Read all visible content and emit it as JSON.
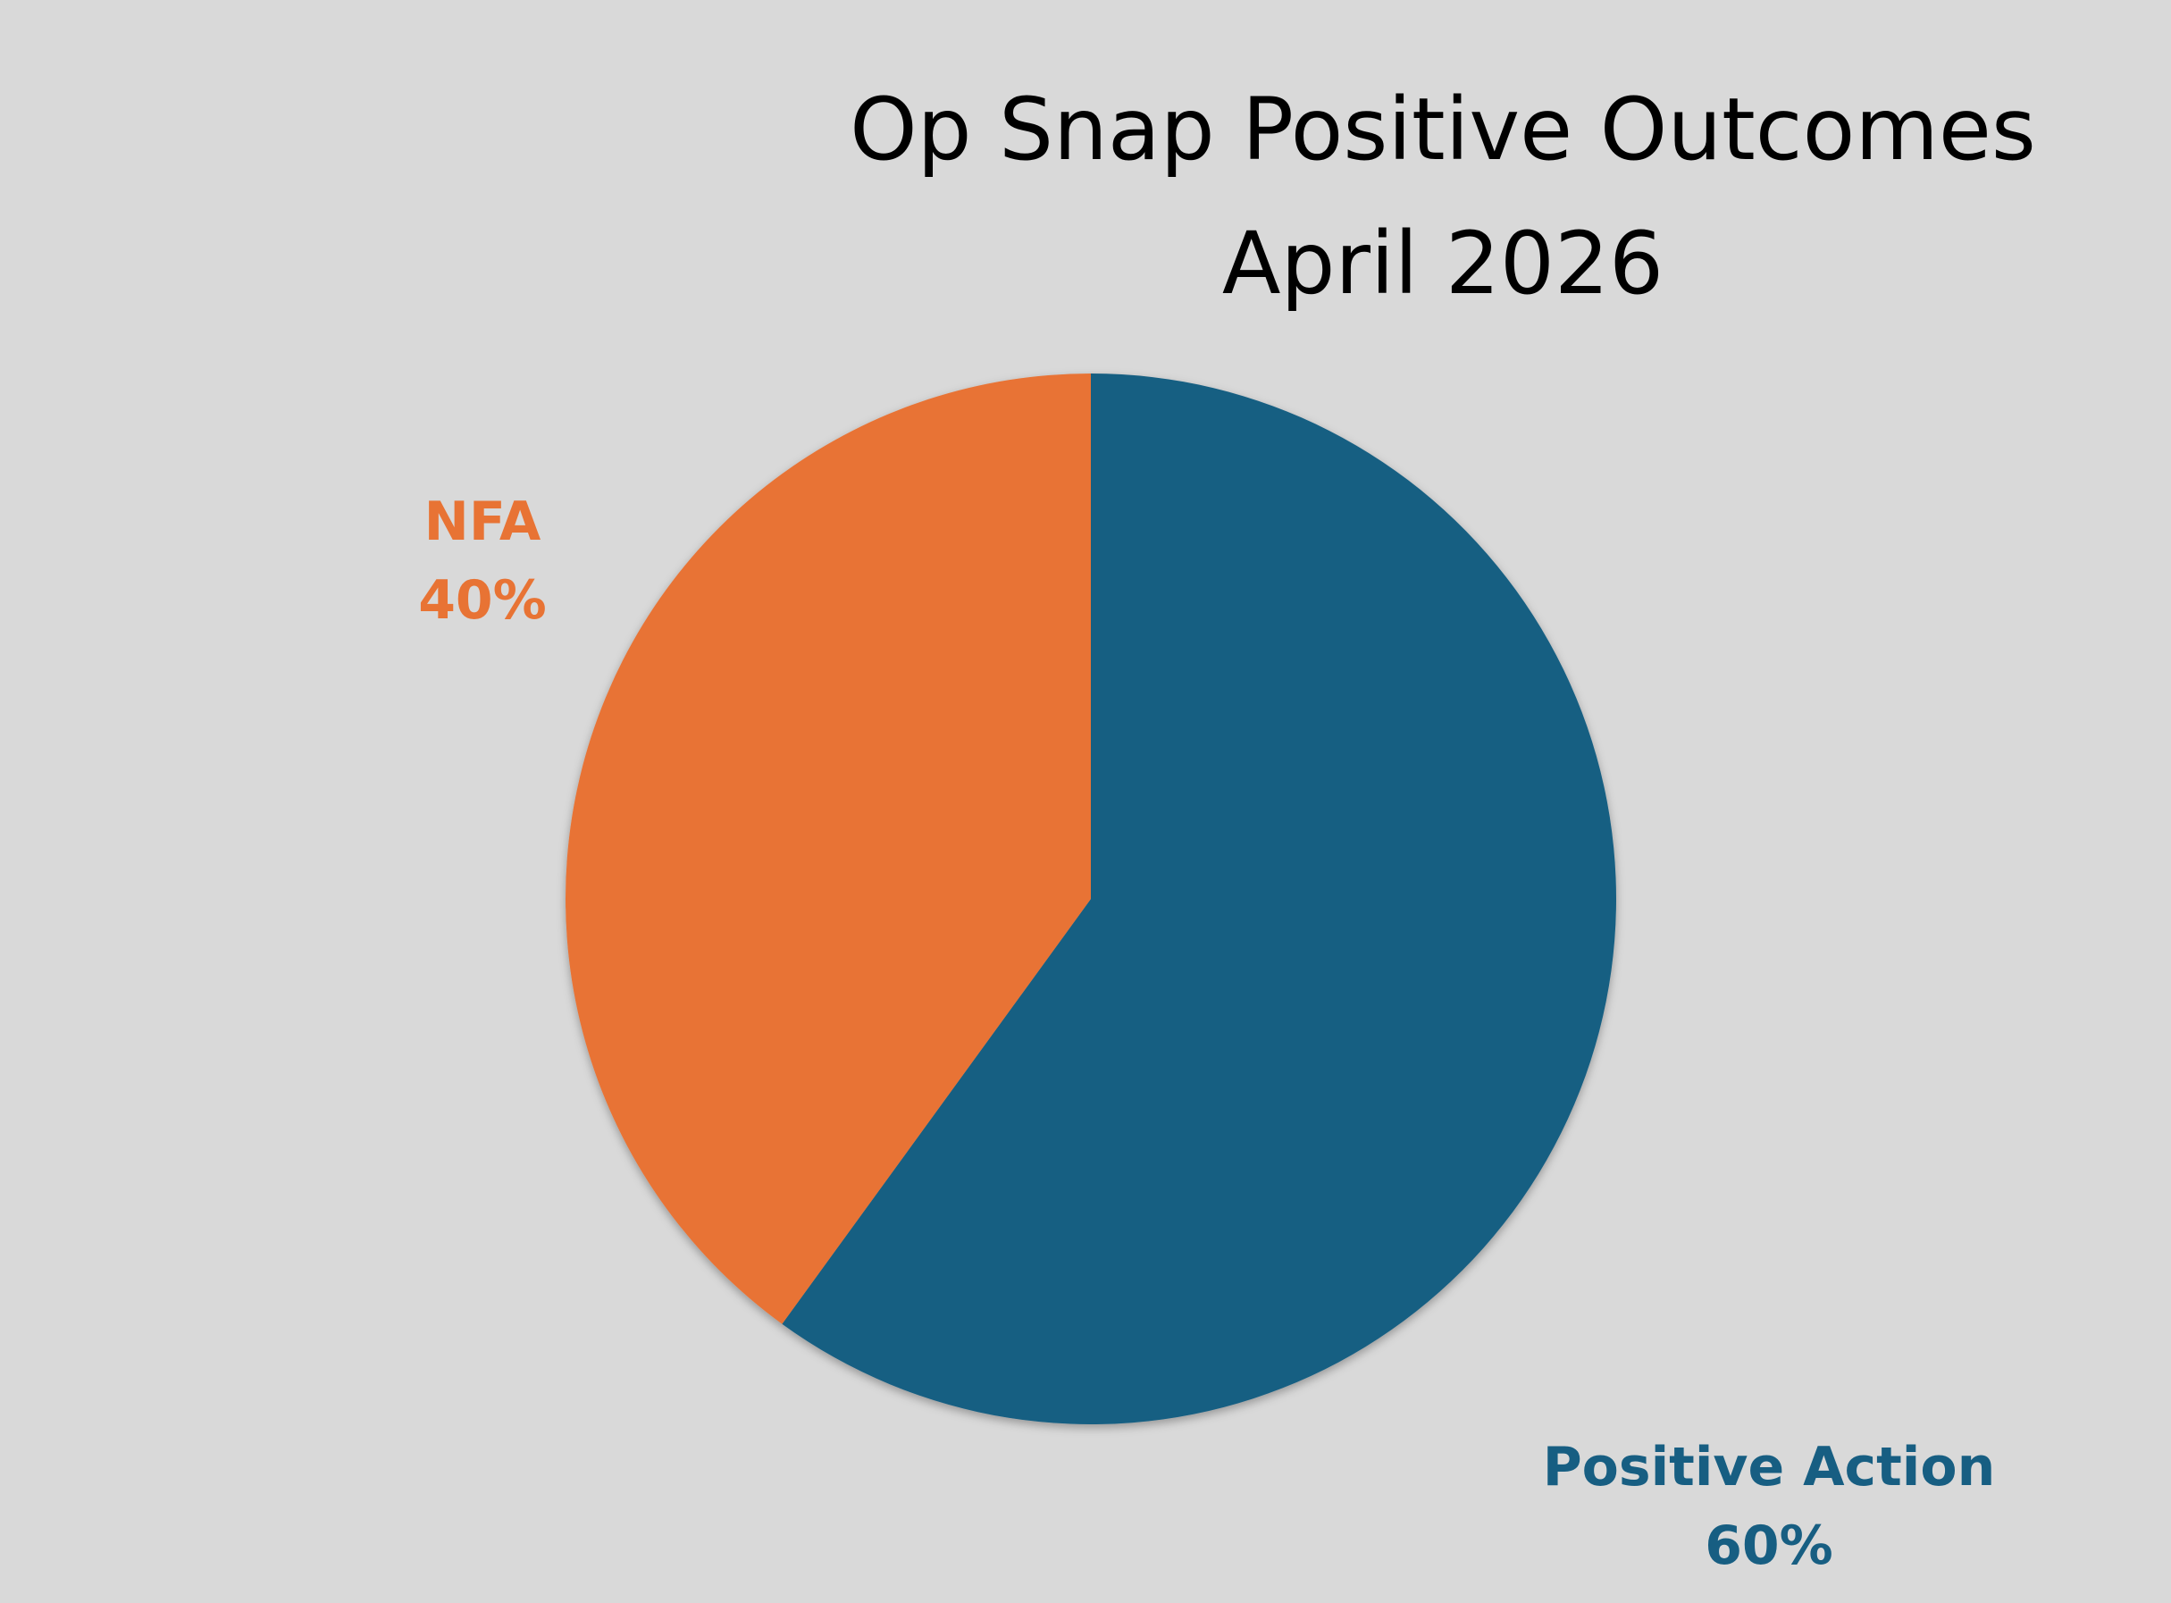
{
  "chart_data": {
    "type": "pie",
    "title": "Op Snap Positive Outcomes",
    "subtitle": "April 2026",
    "slices": [
      {
        "label": "Positive Action",
        "value": 60,
        "value_label": "60%",
        "color": "#175e82"
      },
      {
        "label": "NFA",
        "value": 40,
        "value_label": "40%",
        "color": "#e87334"
      }
    ],
    "legend": "none",
    "start_angle": "12 o'clock",
    "direction": "clockwise"
  },
  "colors": {
    "background": "#d9d9d9",
    "title": "#000000"
  }
}
